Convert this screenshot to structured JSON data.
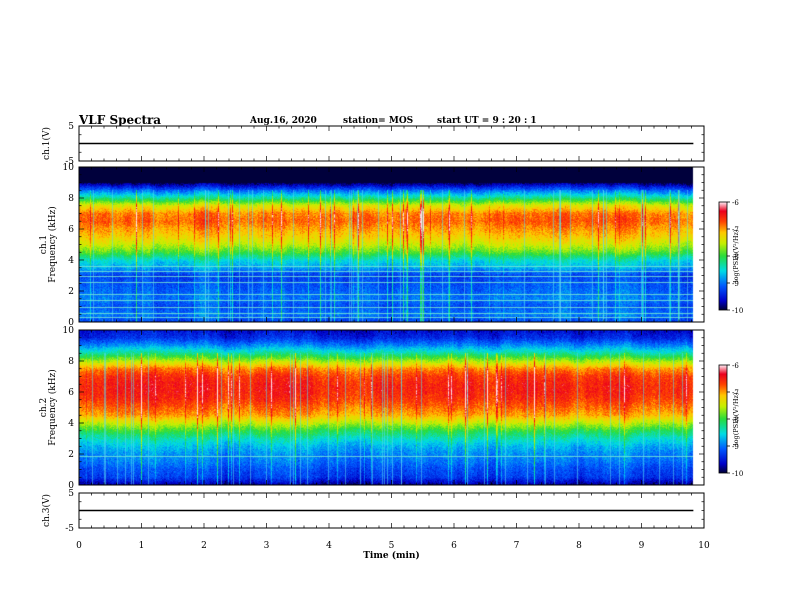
{
  "header": {
    "title": "VLF Spectra",
    "date": "Aug.16, 2020",
    "station": "station= MOS",
    "start": "start  UT  =   9 : 20 : 1"
  },
  "chart_data": [
    {
      "type": "line",
      "name": "ch1-voltage",
      "ylabel": "ch.1(V)",
      "ylim": [
        -5,
        5
      ],
      "y_ticks": [
        "5",
        "-5"
      ],
      "x": [
        0,
        9.83
      ],
      "values": [
        0,
        0
      ],
      "xlim": [
        0,
        10
      ]
    },
    {
      "type": "heatmap",
      "name": "ch1-spectrogram",
      "ylabel": "ch.1\nFrequency (kHz)",
      "ylim": [
        0,
        10
      ],
      "y_ticks": [
        "0",
        "2",
        "4",
        "6",
        "8",
        "10"
      ],
      "xlim": [
        0,
        10
      ],
      "data_end_min": 9.83,
      "colorbar": {
        "label": "log(PSD)(V²/Hz)",
        "range": [
          -10,
          -6
        ],
        "ticks": [
          "-6",
          "-7",
          "-8",
          "-9",
          "-10"
        ]
      },
      "frequency_profile_khz": [
        [
          0.0,
          -9.3
        ],
        [
          0.5,
          -9.0
        ],
        [
          1.0,
          -9.2
        ],
        [
          1.5,
          -9.0
        ],
        [
          2.0,
          -9.1
        ],
        [
          2.5,
          -9.2
        ],
        [
          3.0,
          -9.3
        ],
        [
          3.5,
          -8.8
        ],
        [
          4.0,
          -8.5
        ],
        [
          4.5,
          -7.9
        ],
        [
          5.0,
          -7.5
        ],
        [
          5.5,
          -7.2
        ],
        [
          6.0,
          -7.0
        ],
        [
          6.5,
          -6.8
        ],
        [
          7.0,
          -6.9
        ],
        [
          7.5,
          -7.4
        ],
        [
          8.0,
          -8.3
        ],
        [
          8.5,
          -9.1
        ],
        [
          9.0,
          -10.0
        ],
        [
          10.0,
          -10.0
        ]
      ],
      "constant_lines_khz": [
        0.3,
        0.6,
        1.0,
        1.4,
        1.8,
        2.6,
        3.0,
        3.3,
        3.6
      ]
    },
    {
      "type": "heatmap",
      "name": "ch2-spectrogram",
      "ylabel": "ch.2\nFrequency (kHz)",
      "ylim": [
        0,
        10
      ],
      "y_ticks": [
        "0",
        "2",
        "4",
        "6",
        "8",
        "10"
      ],
      "xlim": [
        0,
        10
      ],
      "data_end_min": 9.83,
      "colorbar": {
        "label": "log(PSD)(V²/Hz)",
        "range": [
          -10,
          -6
        ],
        "ticks": [
          "-6",
          "-7",
          "-8",
          "-9",
          "-10"
        ]
      },
      "frequency_profile_khz": [
        [
          0.0,
          -9.8
        ],
        [
          0.5,
          -9.3
        ],
        [
          1.0,
          -9.2
        ],
        [
          1.5,
          -9.0
        ],
        [
          2.0,
          -8.9
        ],
        [
          2.5,
          -8.7
        ],
        [
          3.0,
          -8.4
        ],
        [
          3.5,
          -8.0
        ],
        [
          4.0,
          -7.5
        ],
        [
          4.5,
          -7.0
        ],
        [
          5.0,
          -6.8
        ],
        [
          5.5,
          -6.6
        ],
        [
          6.0,
          -6.5
        ],
        [
          6.5,
          -6.5
        ],
        [
          7.0,
          -6.6
        ],
        [
          7.5,
          -6.9
        ],
        [
          8.0,
          -7.6
        ],
        [
          8.5,
          -8.3
        ],
        [
          9.0,
          -8.9
        ],
        [
          9.5,
          -9.4
        ],
        [
          10.0,
          -9.6
        ]
      ],
      "constant_lines_khz": [
        1.9
      ]
    },
    {
      "type": "line",
      "name": "ch3-voltage",
      "ylabel": "ch.3(V)",
      "ylim": [
        -5,
        5
      ],
      "y_ticks": [
        "5",
        "-5"
      ],
      "x": [
        0,
        9.83
      ],
      "values": [
        0,
        0
      ],
      "xlim": [
        0,
        10
      ]
    }
  ],
  "x_axis": {
    "label": "Time  (min)",
    "ticks": [
      "0",
      "1",
      "2",
      "3",
      "4",
      "5",
      "6",
      "7",
      "8",
      "9",
      "10"
    ]
  }
}
